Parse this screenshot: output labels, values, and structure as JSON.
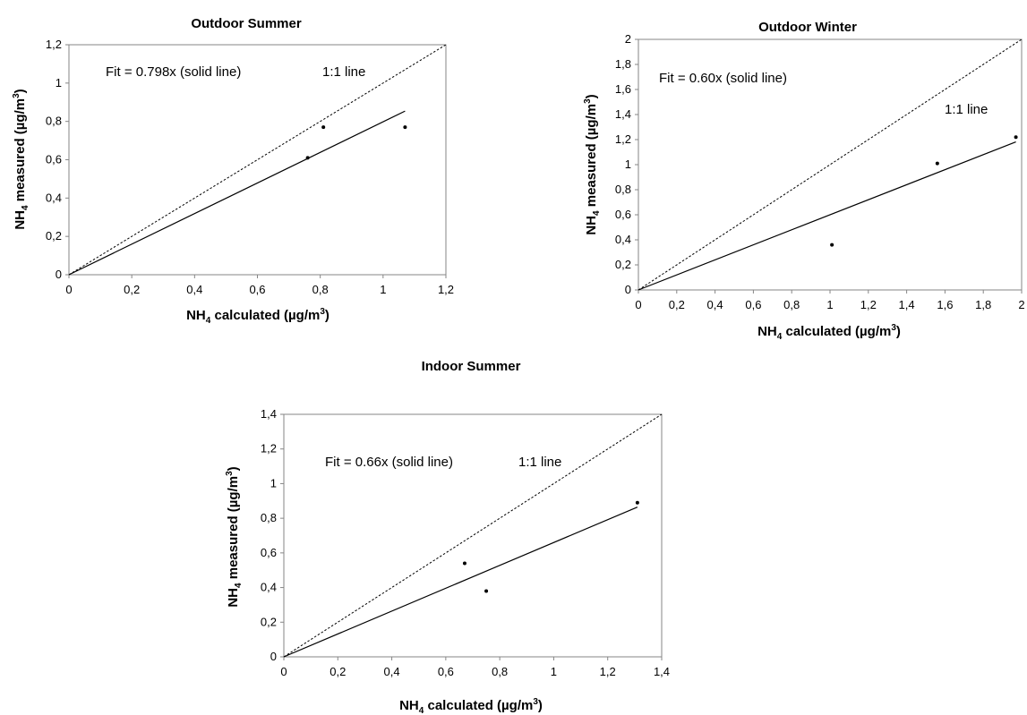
{
  "chart_data": [
    {
      "type": "scatter",
      "title": "Outdoor Summer",
      "xlabel_main": "NH",
      "xlabel_sub": "4",
      "xlabel_mid": " calculated (µg/m",
      "xlabel_sup": "3",
      "xlabel_end": ")",
      "ylabel_main": "NH",
      "ylabel_sub": "4",
      "ylabel_mid": " measured (µg/m",
      "ylabel_sup": "3",
      "ylabel_end": ")",
      "xlim": [
        0,
        1.2
      ],
      "ylim": [
        0,
        1.2
      ],
      "xticks": [
        "0",
        "0,2",
        "0,4",
        "0,6",
        "0,8",
        "1",
        "1,2"
      ],
      "yticks": [
        "0",
        "0,2",
        "0,4",
        "0,6",
        "0,8",
        "1",
        "1,2"
      ],
      "fit_slope": 0.798,
      "fit_xmax": 1.07,
      "fit_label": "Fit = 0.798x (solid line)",
      "ref_label": "1:1 line",
      "points": [
        {
          "x": 0.76,
          "y": 0.61
        },
        {
          "x": 0.81,
          "y": 0.77
        },
        {
          "x": 1.07,
          "y": 0.77
        }
      ],
      "grid": false
    },
    {
      "type": "scatter",
      "title": "Outdoor Winter",
      "xlabel_main": "NH",
      "xlabel_sub": "4",
      "xlabel_mid": " calculated (µg/m",
      "xlabel_sup": "3",
      "xlabel_end": ")",
      "ylabel_main": "NH",
      "ylabel_sub": "4",
      "ylabel_mid": " measured (µg/m",
      "ylabel_sup": "3",
      "ylabel_end": ")",
      "xlim": [
        0,
        2
      ],
      "ylim": [
        0,
        2
      ],
      "xticks": [
        "0",
        "0,2",
        "0,4",
        "0,6",
        "0,8",
        "1",
        "1,2",
        "1,4",
        "1,6",
        "1,8",
        "2"
      ],
      "yticks": [
        "0",
        "0,2",
        "0,4",
        "0,6",
        "0,8",
        "1",
        "1,2",
        "1,4",
        "1,6",
        "1,8",
        "2"
      ],
      "fit_slope": 0.6,
      "fit_xmax": 1.97,
      "fit_label": "Fit = 0.60x (solid line)",
      "ref_label": "1:1 line",
      "points": [
        {
          "x": 1.01,
          "y": 0.36
        },
        {
          "x": 1.56,
          "y": 1.01
        },
        {
          "x": 1.97,
          "y": 1.22
        }
      ],
      "grid": false
    },
    {
      "type": "scatter",
      "title": "Indoor Summer",
      "xlabel_main": "NH",
      "xlabel_sub": "4",
      "xlabel_mid": " calculated (µg/m",
      "xlabel_sup": "3",
      "xlabel_end": ")",
      "ylabel_main": "NH",
      "ylabel_sub": "4",
      "ylabel_mid": " measured (µg/m",
      "ylabel_sup": "3",
      "ylabel_end": ")",
      "xlim": [
        0,
        1.4
      ],
      "ylim": [
        0,
        1.4
      ],
      "xticks": [
        "0",
        "0,2",
        "0,4",
        "0,6",
        "0,8",
        "1",
        "1,2",
        "1,4"
      ],
      "yticks": [
        "0",
        "0,2",
        "0,4",
        "0,6",
        "0,8",
        "1",
        "1,2",
        "1,4"
      ],
      "fit_slope": 0.66,
      "fit_xmax": 1.31,
      "fit_label": "Fit = 0.66x (solid line)",
      "ref_label": "1:1 line",
      "points": [
        {
          "x": 0.67,
          "y": 0.54
        },
        {
          "x": 0.75,
          "y": 0.38
        },
        {
          "x": 1.31,
          "y": 0.89
        }
      ],
      "grid": false
    }
  ]
}
